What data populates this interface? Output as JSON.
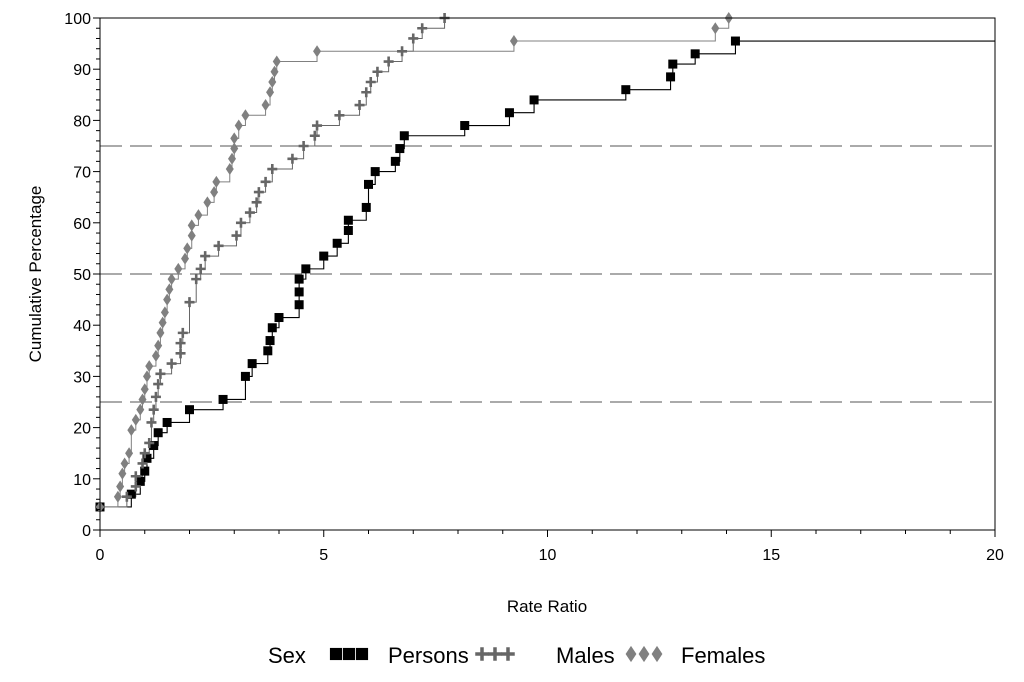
{
  "chart_data": {
    "type": "line",
    "step": true,
    "xlabel": "Rate Ratio",
    "ylabel": "Cumulative Percentage",
    "xlim": [
      0,
      20
    ],
    "ylim": [
      0,
      100
    ],
    "x_ticks": [
      0,
      5,
      10,
      15,
      20
    ],
    "y_ticks": [
      0,
      10,
      20,
      30,
      40,
      50,
      60,
      70,
      80,
      90,
      100
    ],
    "reference_lines": [
      25,
      50,
      75
    ],
    "legend": {
      "title": "Sex",
      "placement": "bottom"
    },
    "series": [
      {
        "name": "Persons",
        "marker": "square",
        "color": "#000000",
        "points": [
          [
            0.0,
            4.5
          ],
          [
            0.7,
            7.0
          ],
          [
            0.9,
            9.5
          ],
          [
            1.0,
            11.5
          ],
          [
            1.05,
            14.0
          ],
          [
            1.2,
            16.5
          ],
          [
            1.3,
            19.0
          ],
          [
            1.5,
            21.0
          ],
          [
            2.0,
            23.5
          ],
          [
            2.75,
            25.5
          ],
          [
            3.25,
            30.0
          ],
          [
            3.4,
            32.5
          ],
          [
            3.75,
            35.0
          ],
          [
            3.8,
            37.0
          ],
          [
            3.85,
            39.5
          ],
          [
            4.0,
            41.5
          ],
          [
            4.45,
            44.0
          ],
          [
            4.45,
            46.5
          ],
          [
            4.45,
            49.0
          ],
          [
            4.6,
            51.0
          ],
          [
            5.0,
            53.5
          ],
          [
            5.3,
            56.0
          ],
          [
            5.55,
            58.5
          ],
          [
            5.55,
            60.5
          ],
          [
            5.95,
            63.0
          ],
          [
            6.0,
            67.5
          ],
          [
            6.15,
            70.0
          ],
          [
            6.6,
            72.0
          ],
          [
            6.7,
            74.5
          ],
          [
            6.8,
            77.0
          ],
          [
            8.15,
            79.0
          ],
          [
            9.15,
            81.5
          ],
          [
            9.7,
            84.0
          ],
          [
            11.75,
            86.0
          ],
          [
            12.75,
            88.5
          ],
          [
            12.8,
            91.0
          ],
          [
            13.3,
            93.0
          ],
          [
            14.2,
            95.5
          ]
        ],
        "extend_to": 20
      },
      {
        "name": "Males",
        "marker": "plus",
        "color": "#666666",
        "points": [
          [
            0.0,
            4.5
          ],
          [
            0.6,
            6.5
          ],
          [
            0.8,
            8.5
          ],
          [
            0.8,
            10.5
          ],
          [
            0.95,
            13.0
          ],
          [
            1.0,
            15.0
          ],
          [
            1.1,
            17.0
          ],
          [
            1.15,
            21.0
          ],
          [
            1.2,
            23.5
          ],
          [
            1.25,
            26.0
          ],
          [
            1.3,
            28.5
          ],
          [
            1.35,
            30.5
          ],
          [
            1.6,
            32.5
          ],
          [
            1.8,
            34.5
          ],
          [
            1.8,
            36.5
          ],
          [
            1.85,
            38.5
          ],
          [
            2.0,
            44.5
          ],
          [
            2.15,
            49.0
          ],
          [
            2.25,
            51.0
          ],
          [
            2.35,
            53.5
          ],
          [
            2.65,
            55.5
          ],
          [
            3.05,
            57.5
          ],
          [
            3.15,
            60.0
          ],
          [
            3.35,
            62.0
          ],
          [
            3.5,
            64.0
          ],
          [
            3.55,
            66.0
          ],
          [
            3.7,
            68.0
          ],
          [
            3.85,
            70.5
          ],
          [
            4.3,
            72.5
          ],
          [
            4.55,
            75.0
          ],
          [
            4.8,
            77.0
          ],
          [
            4.85,
            79.0
          ],
          [
            5.35,
            81.0
          ],
          [
            5.8,
            83.0
          ],
          [
            5.95,
            85.5
          ],
          [
            6.05,
            87.5
          ],
          [
            6.2,
            89.5
          ],
          [
            6.45,
            91.5
          ],
          [
            6.75,
            93.5
          ],
          [
            7.0,
            96.0
          ],
          [
            7.2,
            98.0
          ],
          [
            7.7,
            100.0
          ]
        ]
      },
      {
        "name": "Females",
        "marker": "diamond",
        "color": "#808080",
        "points": [
          [
            0.0,
            4.5
          ],
          [
            0.4,
            6.5
          ],
          [
            0.45,
            8.5
          ],
          [
            0.5,
            11.0
          ],
          [
            0.55,
            13.0
          ],
          [
            0.65,
            15.0
          ],
          [
            0.7,
            19.5
          ],
          [
            0.8,
            21.5
          ],
          [
            0.9,
            23.5
          ],
          [
            0.95,
            25.5
          ],
          [
            1.0,
            27.5
          ],
          [
            1.05,
            30.0
          ],
          [
            1.1,
            32.0
          ],
          [
            1.25,
            34.0
          ],
          [
            1.3,
            36.0
          ],
          [
            1.35,
            38.5
          ],
          [
            1.4,
            40.5
          ],
          [
            1.45,
            42.5
          ],
          [
            1.5,
            45.0
          ],
          [
            1.55,
            47.0
          ],
          [
            1.6,
            49.0
          ],
          [
            1.75,
            51.0
          ],
          [
            1.9,
            53.0
          ],
          [
            1.95,
            55.0
          ],
          [
            2.05,
            57.5
          ],
          [
            2.05,
            59.5
          ],
          [
            2.2,
            61.5
          ],
          [
            2.4,
            64.0
          ],
          [
            2.55,
            66.0
          ],
          [
            2.6,
            68.0
          ],
          [
            2.9,
            70.5
          ],
          [
            2.95,
            72.5
          ],
          [
            3.0,
            74.5
          ],
          [
            3.0,
            76.5
          ],
          [
            3.1,
            79.0
          ],
          [
            3.25,
            81.0
          ],
          [
            3.7,
            83.0
          ],
          [
            3.8,
            85.5
          ],
          [
            3.85,
            87.5
          ],
          [
            3.9,
            89.5
          ],
          [
            3.95,
            91.5
          ],
          [
            4.85,
            93.5
          ],
          [
            9.25,
            95.5
          ],
          [
            13.75,
            98.0
          ],
          [
            14.05,
            100.0
          ]
        ]
      }
    ]
  }
}
